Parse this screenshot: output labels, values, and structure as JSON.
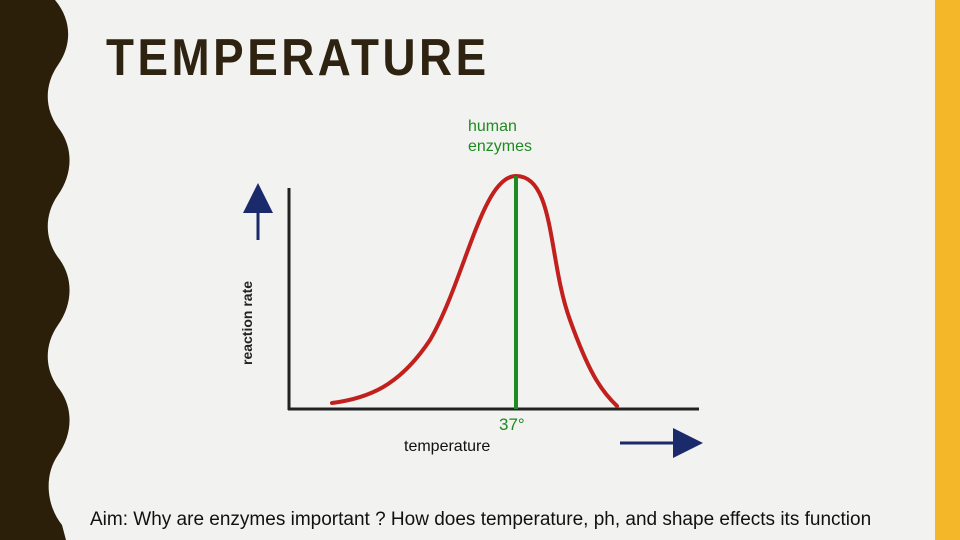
{
  "slide": {
    "title": "TEMPERATURE",
    "aim_text": "Aim: Why are enzymes important ? How does temperature, ph, and shape effects its function",
    "colors": {
      "left_band": "#2b1f0a",
      "right_band": "#f4b72a",
      "background": "#f2f2f0",
      "curve": "#c1201d",
      "peak_line": "#1f8a22",
      "arrows": "#1b2a6b",
      "axes": "#222222"
    }
  },
  "diagram": {
    "curve_label": "human enzymes",
    "curve_label_lines": [
      "human",
      "enzymes"
    ],
    "y_axis_label": "reaction rate",
    "x_axis_label": "temperature",
    "peak_label": "37°"
  }
}
